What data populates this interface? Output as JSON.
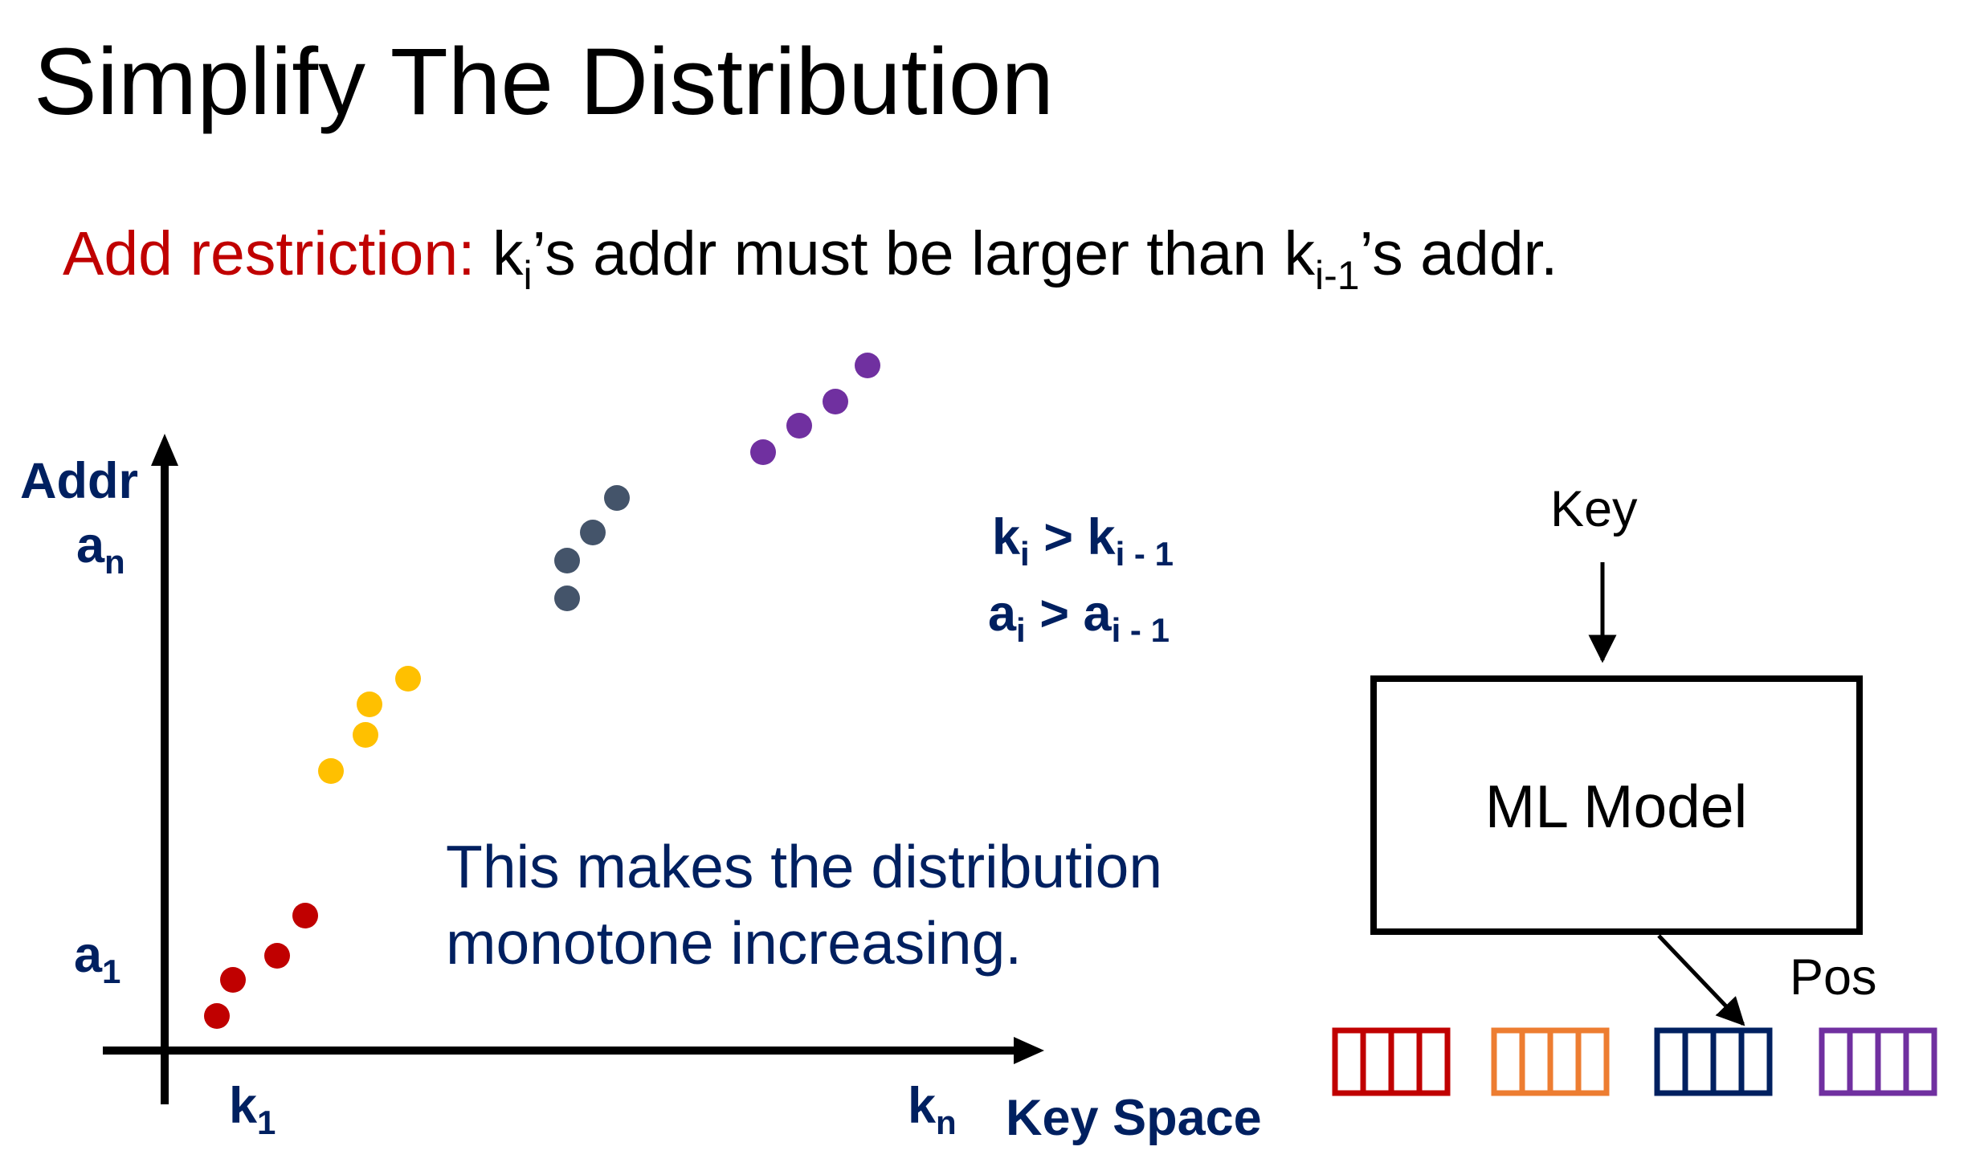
{
  "slide": {
    "title": "Simplify The Distribution"
  },
  "restriction": {
    "prefix": "Add restriction:",
    "text_1": " k",
    "sub_1": "i",
    "text_2": "’s addr must be larger than k",
    "sub_2": "i-1",
    "text_3": "’s addr."
  },
  "plot": {
    "y_axis_label": "Addr",
    "x_axis_label": "Key Space",
    "y_tick_top": {
      "base": "a",
      "sub": "n"
    },
    "y_tick_bottom": {
      "base": "a",
      "sub": "1"
    },
    "x_tick_left": {
      "base": "k",
      "sub": "1"
    },
    "x_tick_right": {
      "base": "k",
      "sub": "n"
    },
    "relations": [
      {
        "left": "k",
        "left_sub": "i",
        "op": " > ",
        "right": "k",
        "right_sub": "i - 1"
      },
      {
        "left": "a",
        "left_sub": "i",
        "op": " > ",
        "right": "a",
        "right_sub": "i - 1"
      }
    ],
    "note_lines": [
      "This makes the distribution",
      "monotone increasing."
    ],
    "point_groups": [
      {
        "color": "#c00000",
        "count": 4
      },
      {
        "color": "#ffc000",
        "count": 4
      },
      {
        "color": "#44546a",
        "count": 4
      },
      {
        "color": "#7030a0",
        "count": 4
      }
    ]
  },
  "model": {
    "input_label": "Key",
    "box_label": "ML Model",
    "output_label": "Pos",
    "blocks": [
      {
        "color": "#c00000",
        "slots": 4
      },
      {
        "color": "#ed7d31",
        "slots": 4
      },
      {
        "color": "#002060",
        "slots": 4
      },
      {
        "color": "#7030a0",
        "slots": 4
      }
    ]
  },
  "colors": {
    "accent_red": "#c00000",
    "navy": "#002060",
    "text_black": "#000000"
  }
}
